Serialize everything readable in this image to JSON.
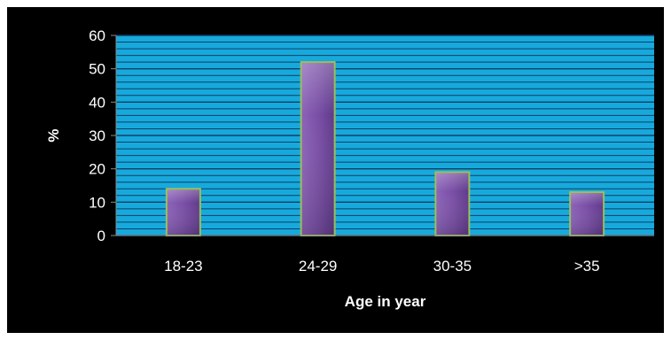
{
  "chart_data": {
    "type": "bar",
    "categories": [
      "18-23",
      "24-29",
      "30-35",
      ">35"
    ],
    "values": [
      14,
      52,
      19,
      13
    ],
    "title": "",
    "xlabel": "Age in year",
    "ylabel": "%",
    "ylim": [
      0,
      60
    ],
    "yticks": [
      "0",
      "10",
      "20",
      "30",
      "40",
      "50",
      "60"
    ],
    "grid": true,
    "colors": {
      "chart_background": "#000000",
      "plot_background": "#17a9dc",
      "grid_line": "#0c3f66",
      "bar_fill": "#7a4fa6",
      "bar_border": "#9bbf5a",
      "text": "#ffffff"
    }
  }
}
